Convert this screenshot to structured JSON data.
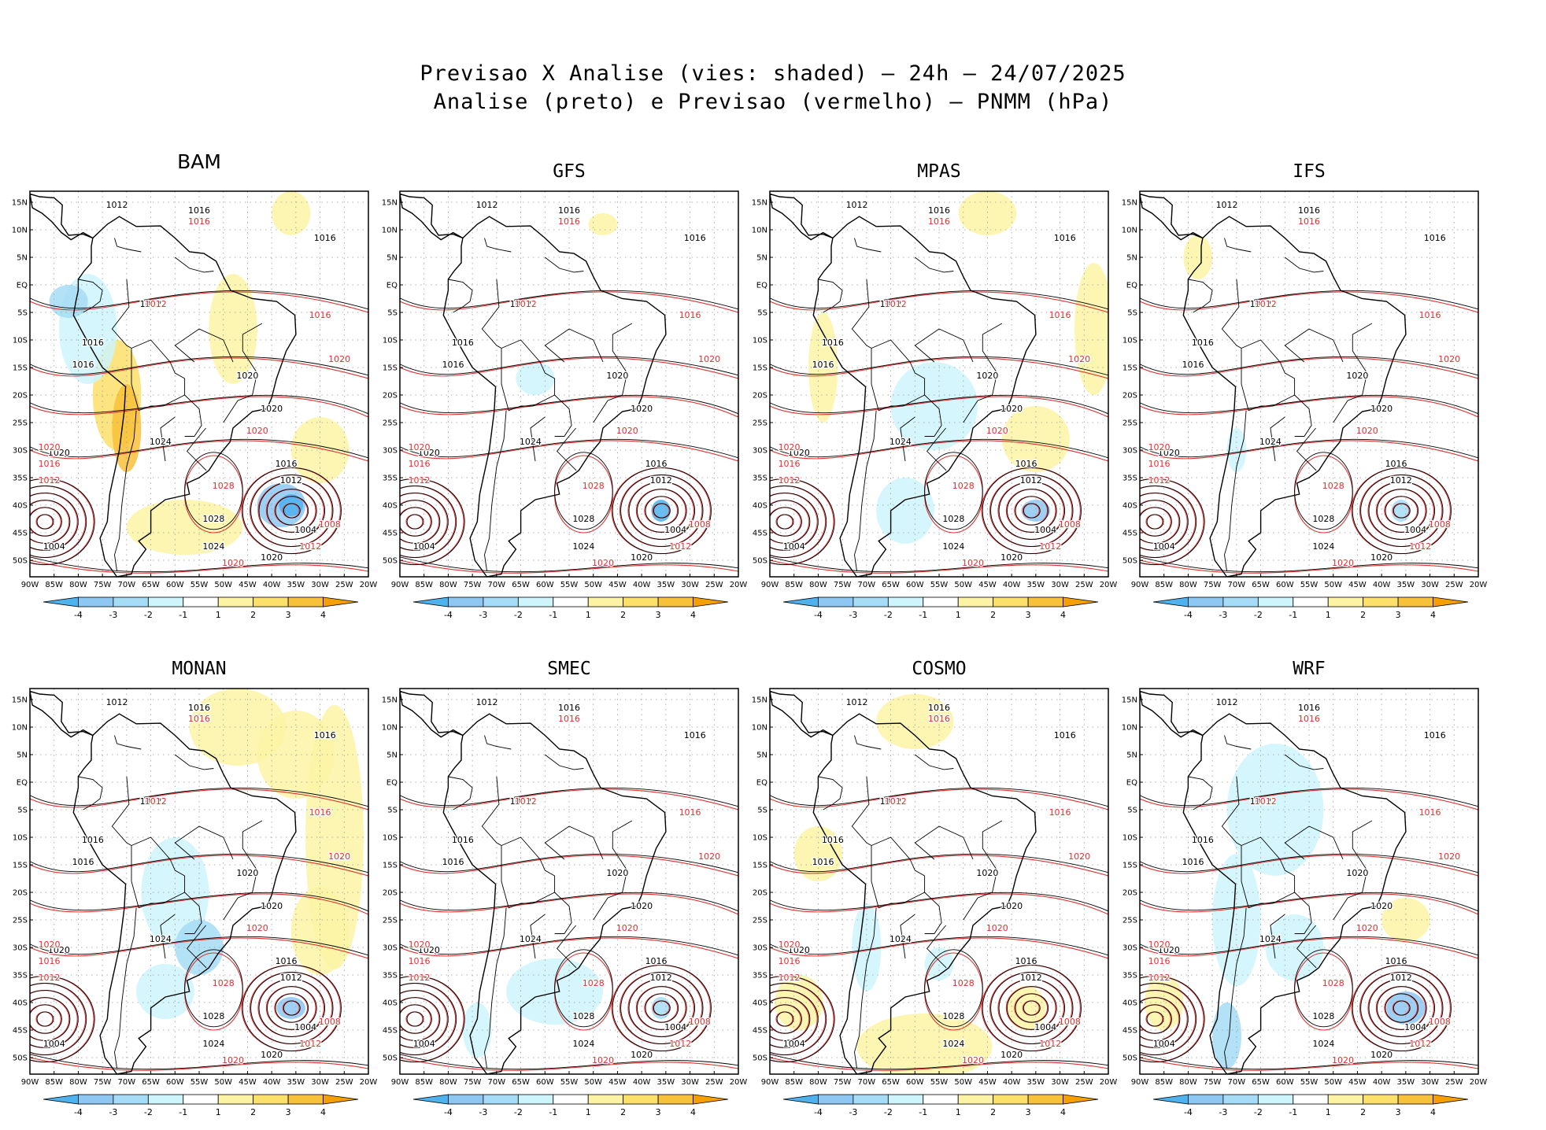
{
  "title_line1": "Previsao X Analise (vies: shaded) — 24h — 24/07/2025",
  "title_line2": "Analise (preto) e Previsao (vermelho) — PNMM (hPa)",
  "panels": [
    {
      "name": "BAM"
    },
    {
      "name": "GFS"
    },
    {
      "name": "MPAS"
    },
    {
      "name": "IFS"
    },
    {
      "name": "MONAN"
    },
    {
      "name": "SMEC"
    },
    {
      "name": "COSMO"
    },
    {
      "name": "WRF"
    }
  ],
  "lat_labels": [
    "15N",
    "10N",
    "5N",
    "EQ",
    "5S",
    "10S",
    "15S",
    "20S",
    "25S",
    "30S",
    "35S",
    "40S",
    "45S",
    "50S"
  ],
  "lon_labels": [
    "90W",
    "85W",
    "80W",
    "75W",
    "70W",
    "65W",
    "60W",
    "55W",
    "50W",
    "45W",
    "40W",
    "35W",
    "30W",
    "25W",
    "20W"
  ],
  "extent": {
    "lon": [
      -90,
      -20
    ],
    "lat": [
      -53,
      17
    ]
  },
  "colorbar": {
    "labels": [
      "-4",
      "-3",
      "-2",
      "-1",
      "1",
      "2",
      "3",
      "4"
    ],
    "colors": [
      "#4db2ee",
      "#8ec8f2",
      "#a6dcf5",
      "#cdf5fb",
      "#ffffff",
      "#fcf4a4",
      "#fbe06a",
      "#f8c13a",
      "#f5a000"
    ]
  },
  "colors": {
    "analysis": "#000000",
    "forecast": "#e03030"
  },
  "isobars": {
    "analysis": [
      {
        "v": "1012",
        "lon": -72,
        "lat": 14
      },
      {
        "v": "1016",
        "lon": -55,
        "lat": 13
      },
      {
        "v": "1016",
        "lon": -29,
        "lat": 8
      },
      {
        "v": "1012",
        "lon": -65,
        "lat": -4
      },
      {
        "v": "1016",
        "lon": -77,
        "lat": -11
      },
      {
        "v": "1016",
        "lon": -79,
        "lat": -15
      },
      {
        "v": "1020",
        "lon": -45,
        "lat": -17
      },
      {
        "v": "1020",
        "lon": -40,
        "lat": -23
      },
      {
        "v": "1020",
        "lon": -84,
        "lat": -31
      },
      {
        "v": "1024",
        "lon": -63,
        "lat": -29
      },
      {
        "v": "1016",
        "lon": -37,
        "lat": -33
      },
      {
        "v": "1012",
        "lon": -36,
        "lat": -36
      },
      {
        "v": "1028",
        "lon": -52,
        "lat": -43
      },
      {
        "v": "1004",
        "lon": -85,
        "lat": -48
      },
      {
        "v": "1024",
        "lon": -52,
        "lat": -48
      },
      {
        "v": "1004",
        "lon": -33,
        "lat": -45
      },
      {
        "v": "1020",
        "lon": -40,
        "lat": -50
      }
    ],
    "forecast": [
      {
        "v": "1016",
        "lon": -55,
        "lat": 11
      },
      {
        "v": "1012",
        "lon": -64,
        "lat": -4
      },
      {
        "v": "1016",
        "lon": -30,
        "lat": -6
      },
      {
        "v": "1020",
        "lon": -26,
        "lat": -14
      },
      {
        "v": "1020",
        "lon": -43,
        "lat": -27
      },
      {
        "v": "1020",
        "lon": -86,
        "lat": -30
      },
      {
        "v": "1016",
        "lon": -86,
        "lat": -33
      },
      {
        "v": "1012",
        "lon": -86,
        "lat": -36
      },
      {
        "v": "1028",
        "lon": -50,
        "lat": -37
      },
      {
        "v": "1008",
        "lon": -28,
        "lat": -44
      },
      {
        "v": "1012",
        "lon": -32,
        "lat": -48
      },
      {
        "v": "1020",
        "lon": -48,
        "lat": -51
      }
    ]
  }
}
